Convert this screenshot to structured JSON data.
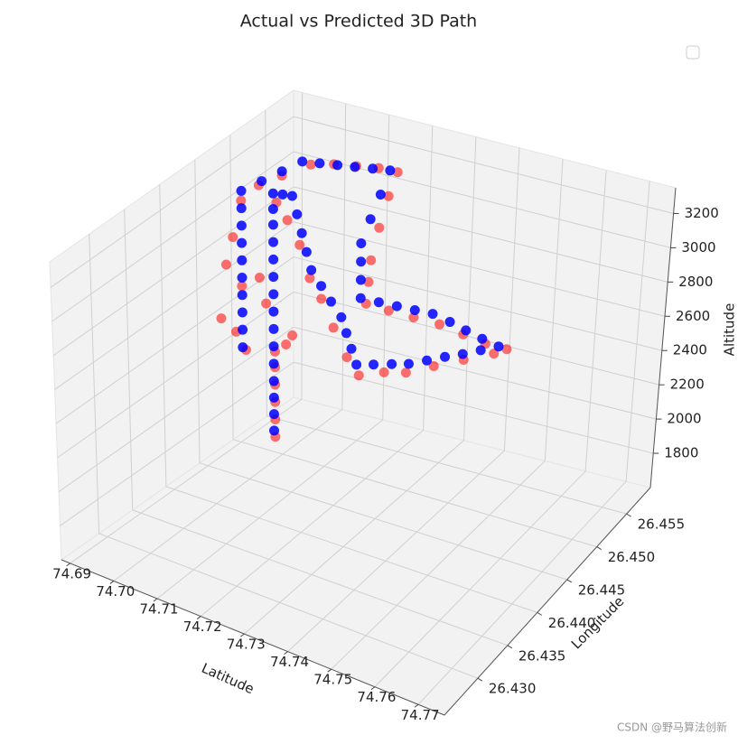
{
  "chart_data": {
    "type": "scatter3d",
    "title": "Actual vs Predicted 3D Path",
    "xlabel": "Latitude",
    "ylabel": "Longitude",
    "zlabel": "Altitude",
    "xlim": [
      74.688,
      74.776
    ],
    "ylim": [
      26.4244,
      26.459
    ],
    "zlim": [
      1600,
      3350
    ],
    "xticks": [
      74.69,
      {
        "value": 74.7,
        "label": "74.70"
      },
      74.71,
      74.72,
      74.73,
      74.74,
      74.75,
      74.76,
      74.77
    ],
    "yticks": [
      {
        "value": 26.43,
        "label": "26.430"
      },
      {
        "value": 26.435,
        "label": "26.435"
      },
      {
        "value": 26.44,
        "label": "26.440"
      },
      26.445,
      {
        "value": 26.45,
        "label": "26.450"
      },
      26.455
    ],
    "zticks": [
      1800,
      2000,
      2200,
      2400,
      2600,
      2800,
      3000,
      3200
    ],
    "grid": true,
    "legend": "upper right",
    "watermark": "CSDN @野马算法创新",
    "series": [
      {
        "color": "#ff0000",
        "x": [
          74.7062,
          74.7062,
          74.7062,
          74.7062,
          74.7062,
          74.7062,
          74.708,
          74.709,
          74.707,
          74.71,
          74.7125,
          74.715,
          74.718,
          74.721,
          74.724,
          74.7262,
          74.729,
          74.732,
          74.735,
          74.7385,
          74.742,
          74.7438,
          74.7405,
          74.737,
          74.7335,
          74.73,
          74.7268,
          74.724,
          74.7242,
          74.7244,
          74.724,
          74.7232,
          74.7225,
          74.718,
          74.713,
          74.708,
          74.703,
          74.7015,
          74.701,
          74.7008,
          74.6998,
          74.699,
          74.7005,
          74.6985,
          74.7,
          74.701,
          74.7035,
          74.7045
        ],
        "y": [
          26.445,
          26.445,
          26.445,
          26.445,
          26.445,
          26.445,
          26.4455,
          26.4458,
          26.4448,
          26.4445,
          26.4447,
          26.4446,
          26.4444,
          26.4443,
          26.4444,
          26.4448,
          26.4468,
          26.4482,
          26.4505,
          26.4528,
          26.4552,
          26.456,
          26.4548,
          26.4536,
          26.4522,
          26.4505,
          26.4488,
          26.4472,
          26.4474,
          26.4476,
          26.449,
          26.4508,
          26.4525,
          26.4526,
          26.4525,
          26.4524,
          26.4522,
          26.449,
          26.446,
          26.4436,
          26.443,
          26.4425,
          26.4438,
          26.442,
          26.4432,
          26.444,
          26.4445,
          26.4448
        ],
        "z": [
          1890,
          1990,
          2090,
          2190,
          2290,
          2380,
          2420,
          2470,
          3250,
          3180,
          3050,
          2880,
          2790,
          2650,
          2500,
          2400,
          2375,
          2350,
          2335,
          2320,
          2300,
          2310,
          2360,
          2430,
          2510,
          2580,
          2650,
          2720,
          2840,
          2960,
          3100,
          3220,
          3300,
          3290,
          3270,
          3250,
          3220,
          3240,
          3270,
          3250,
          3050,
          2900,
          2750,
          2600,
          2500,
          2380,
          2800,
          2650
        ]
      },
      {
        "color": "#0000ff",
        "x": [
          74.7056,
          74.7056,
          74.7056,
          74.7056,
          74.7056,
          74.7056,
          74.7056,
          74.7056,
          74.7056,
          74.7056,
          74.7056,
          74.7056,
          74.7056,
          74.7056,
          74.7056,
          74.7078,
          74.71,
          74.7111,
          74.7122,
          74.7133,
          74.7144,
          74.7167,
          74.719,
          74.7214,
          74.7226,
          74.7238,
          74.725,
          74.7273,
          74.7297,
          74.732,
          74.7341,
          74.7362,
          74.7384,
          74.7405,
          74.7426,
          74.74,
          74.7373,
          74.7347,
          74.732,
          74.7298,
          74.7276,
          74.7254,
          74.7232,
          74.7232,
          74.7232,
          74.7232,
          74.7226,
          74.722,
          74.7214,
          74.7174,
          74.7133,
          74.7093,
          74.7052,
          74.7012,
          74.7012,
          74.7012,
          74.7012,
          74.7012,
          74.7012,
          74.7012,
          74.7012,
          74.7012,
          74.7012,
          74.7012,
          74.7012,
          74.7012
        ],
        "y": [
          26.4452,
          26.4452,
          26.4452,
          26.4452,
          26.4452,
          26.4452,
          26.4452,
          26.4452,
          26.4452,
          26.4452,
          26.4452,
          26.4452,
          26.4452,
          26.4452,
          26.4452,
          26.4452,
          26.4452,
          26.4452,
          26.4452,
          26.4452,
          26.4452,
          26.4452,
          26.4452,
          26.4452,
          26.4452,
          26.4452,
          26.4452,
          26.4463,
          26.4475,
          26.4486,
          26.45,
          26.4514,
          26.4527,
          26.4541,
          26.4555,
          26.4546,
          26.4538,
          26.453,
          26.4521,
          26.4508,
          26.4495,
          26.4482,
          26.4469,
          26.4469,
          26.4469,
          26.4469,
          26.4486,
          26.4504,
          26.4521,
          26.4521,
          26.4521,
          26.4521,
          26.4521,
          26.4521,
          26.4492,
          26.4463,
          26.4434,
          26.4434,
          26.4434,
          26.4434,
          26.4434,
          26.4434,
          26.4434,
          26.4434,
          26.4434,
          26.4434
        ],
        "z": [
          1915,
          2010,
          2105,
          2200,
          2300,
          2400,
          2500,
          2600,
          2700,
          2800,
          2900,
          3000,
          3100,
          3190,
          3280,
          3290,
          3298,
          3200,
          3100,
          3000,
          2904,
          2830,
          2757,
          2685,
          2603,
          2522,
          2440,
          2423,
          2405,
          2388,
          2377,
          2367,
          2356,
          2346,
          2335,
          2392,
          2449,
          2506,
          2563,
          2611,
          2659,
          2707,
          2755,
          2860,
          2965,
          3070,
          3152,
          3233,
          3315,
          3298,
          3280,
          3263,
          3245,
          3228,
          3257,
          3286,
          3315,
          3215,
          3115,
          3015,
          2915,
          2815,
          2715,
          2615,
          2515,
          2414
        ]
      }
    ]
  }
}
